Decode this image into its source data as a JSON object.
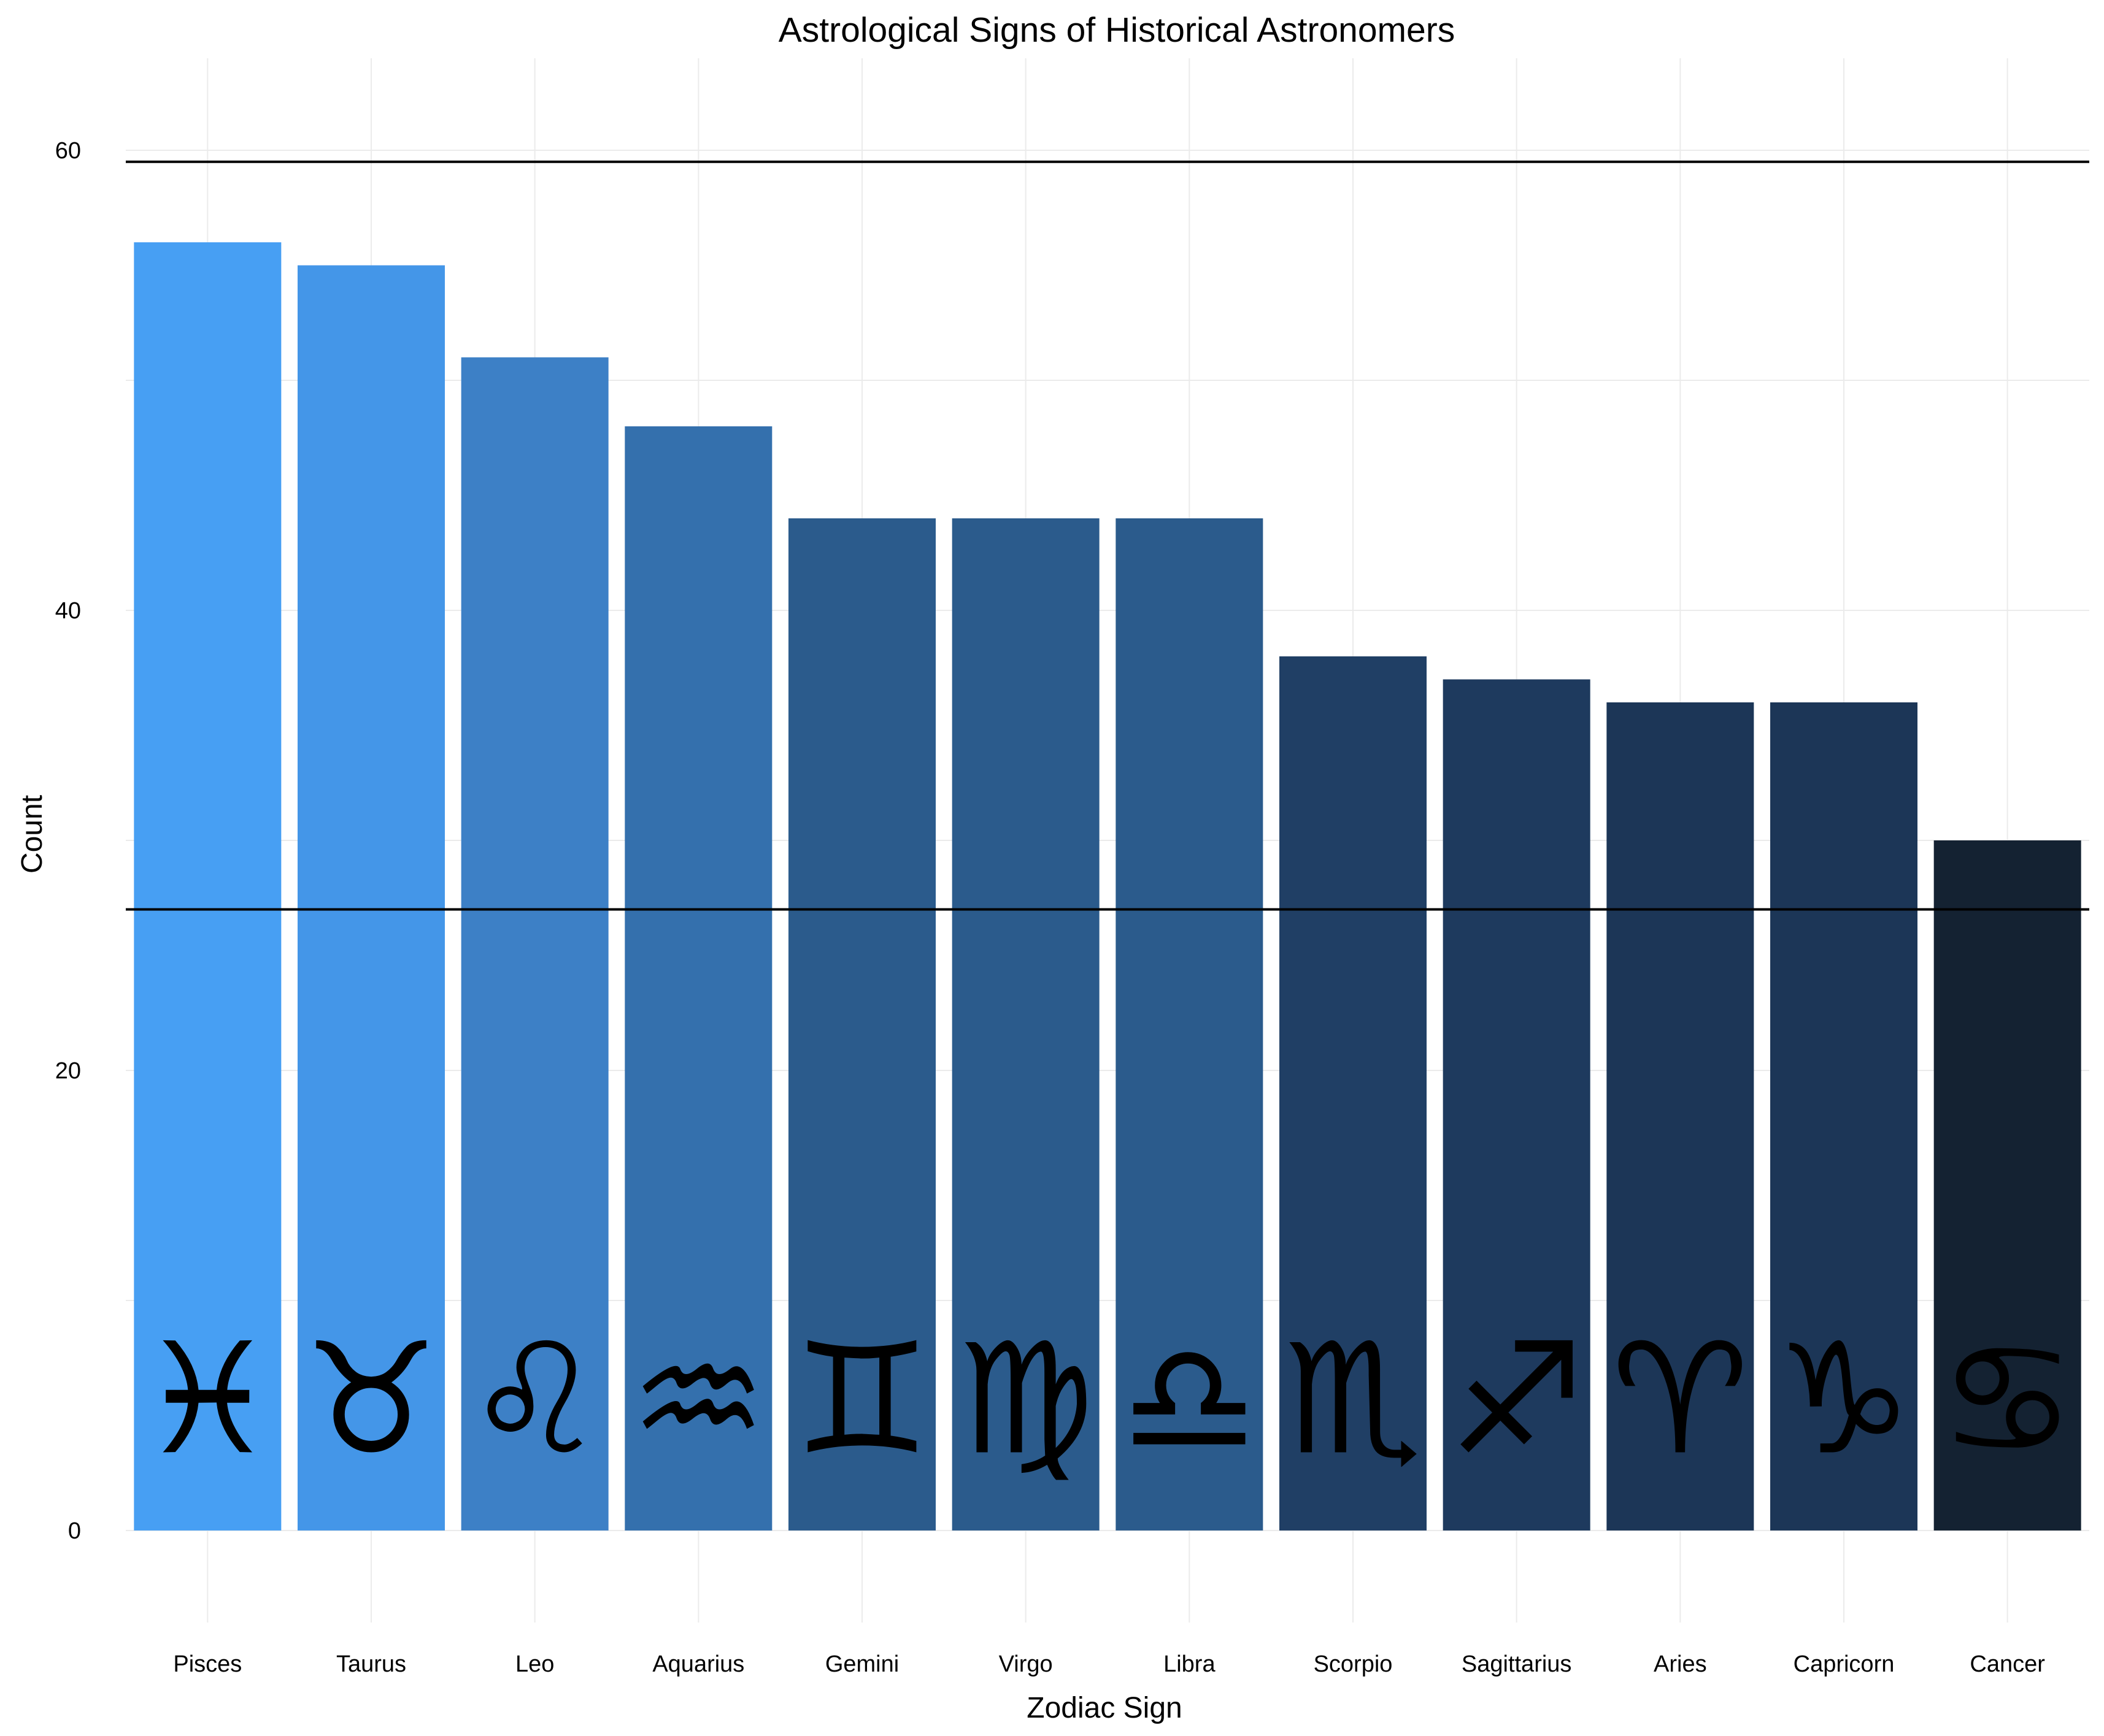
{
  "chart_data": {
    "type": "bar",
    "title": "Astrological Signs of Historical Astronomers",
    "xlabel": "Zodiac Sign",
    "ylabel": "Count",
    "ylim": [
      -4,
      64
    ],
    "yticks": [
      0,
      20,
      40,
      60
    ],
    "grid": true,
    "legend": "none",
    "reference_lines": [
      59.5,
      27
    ],
    "categories": [
      "Pisces",
      "Taurus",
      "Leo",
      "Aquarius",
      "Gemini",
      "Virgo",
      "Libra",
      "Scorpio",
      "Sagittarius",
      "Aries",
      "Capricorn",
      "Cancer"
    ],
    "values": [
      56,
      55,
      51,
      48,
      44,
      44,
      44,
      38,
      37,
      36,
      36,
      30
    ],
    "symbols": [
      "♓",
      "♉",
      "♌",
      "♒",
      "♊",
      "♍",
      "♎",
      "♏",
      "♐",
      "♈",
      "♑",
      "♋"
    ],
    "colors": [
      "#479ff3",
      "#4496e8",
      "#3d80c6",
      "#3470ad",
      "#2b5b8c",
      "#2b5b8c",
      "#2b5b8c",
      "#203f65",
      "#1e3a5e",
      "#1c3657",
      "#1c3657",
      "#142232"
    ]
  }
}
